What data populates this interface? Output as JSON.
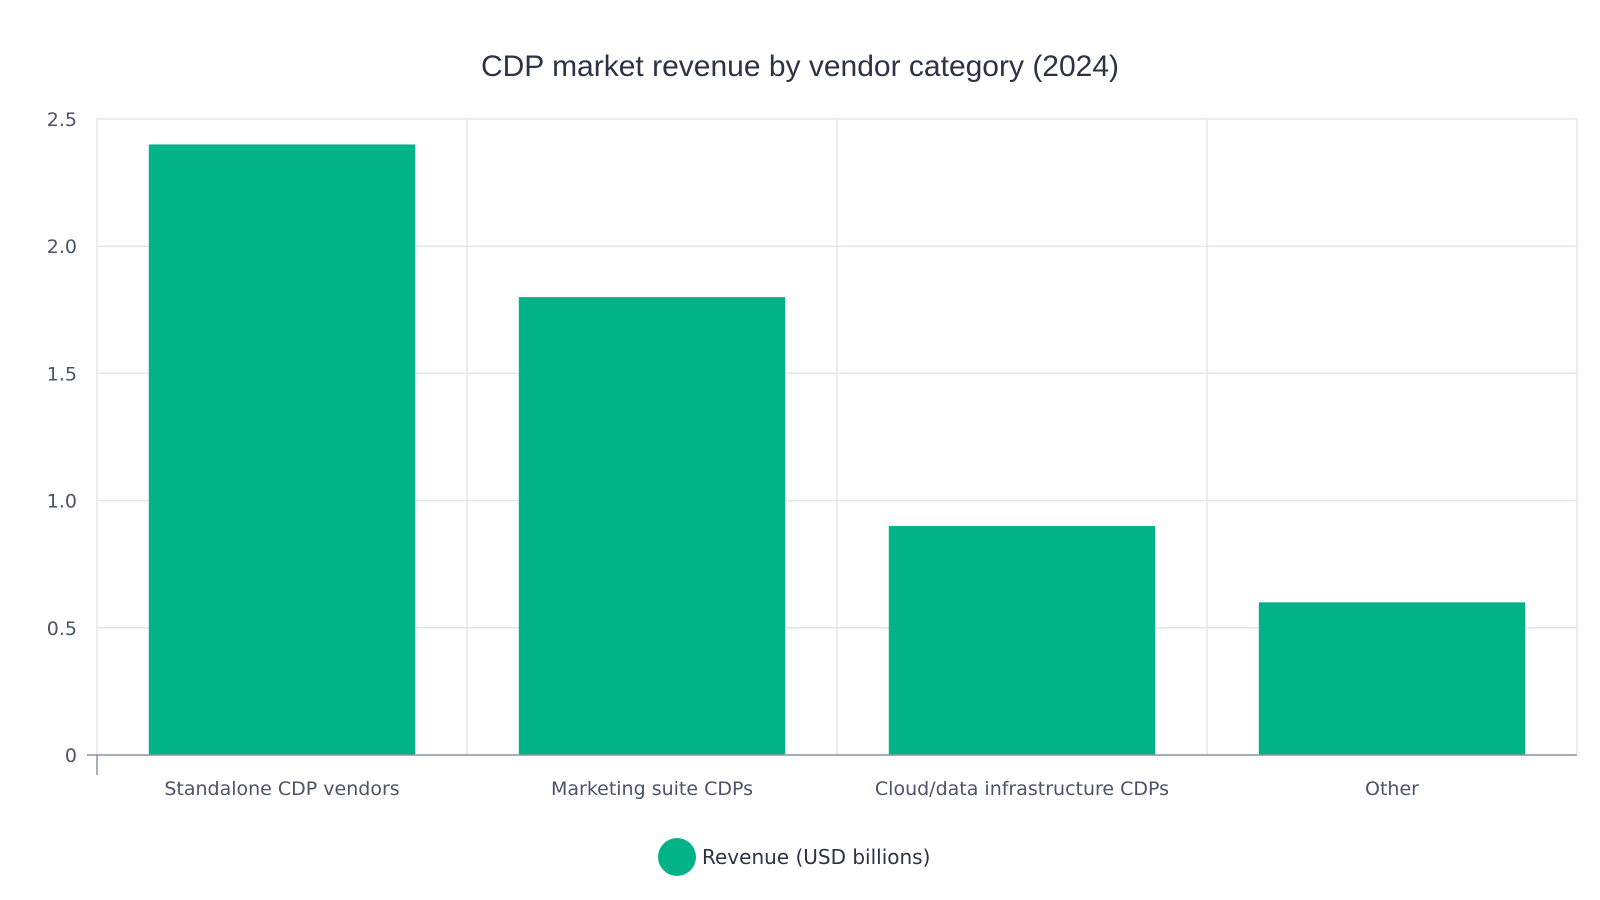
{
  "chart_data": {
    "type": "bar",
    "title": "CDP market revenue by vendor category (2024)",
    "xlabel": "",
    "ylabel": "",
    "categories": [
      "Standalone CDP vendors",
      "Marketing suite CDPs",
      "Cloud/data infrastructure CDPs",
      "Other"
    ],
    "series": [
      {
        "name": "Revenue (USD billions)",
        "values": [
          2.4,
          1.8,
          0.9,
          0.6
        ],
        "color": "#02b388"
      }
    ],
    "ylim": [
      0,
      2.5
    ],
    "yticks": [
      "0",
      "0.5",
      "1.0",
      "1.5",
      "2.0",
      "2.5"
    ],
    "ytick_values": [
      0,
      0.5,
      1.0,
      1.5,
      2.0,
      2.5
    ],
    "grid": true,
    "legend_position": "bottom-center"
  }
}
